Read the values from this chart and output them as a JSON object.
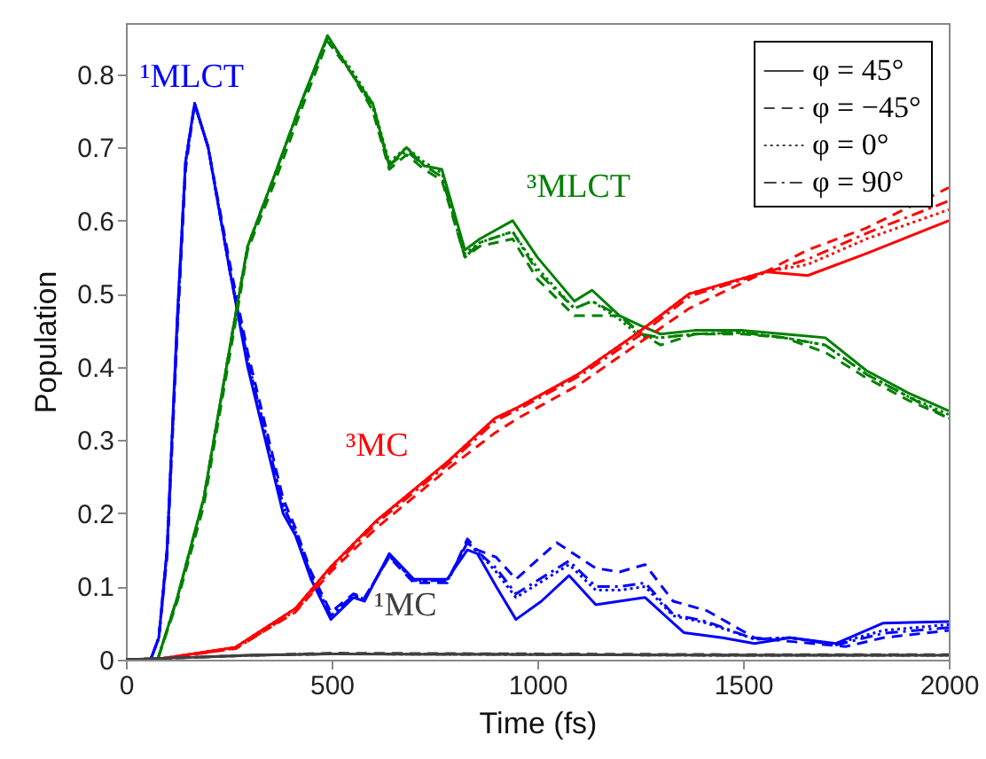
{
  "chart_data": {
    "type": "line",
    "xlabel": "Time (fs)",
    "ylabel": "Population",
    "xlim": [
      0,
      2000
    ],
    "xticks": [
      0,
      500,
      1000,
      1500,
      2000
    ],
    "ylim": [
      0,
      0.87
    ],
    "yticks": [
      0,
      0.1,
      0.2,
      0.3,
      0.4,
      0.5,
      0.6,
      0.7,
      0.8
    ],
    "grid": false,
    "legend": "top right",
    "marker": "none",
    "annotations": [
      "¹MLCT",
      "³MLCT",
      "³MC",
      "¹MC"
    ],
    "series": [
      {
        "color": "#0000ff",
        "line_style": "solid",
        "x": [
          0,
          60,
          80,
          100,
          125,
          145,
          167,
          200,
          253,
          296,
          382,
          412,
          450,
          498,
          553,
          580,
          640,
          700,
          781,
          830,
          854,
          900,
          948,
          1010,
          1077,
          1142,
          1200,
          1262,
          1356,
          1450,
          1528,
          1614,
          1725,
          1841,
          2000
        ],
        "values": [
          0,
          0,
          0.03,
          0.15,
          0.47,
          0.68,
          0.76,
          0.7,
          0.53,
          0.4,
          0.2,
          0.17,
          0.11,
          0.055,
          0.085,
          0.08,
          0.145,
          0.11,
          0.11,
          0.15,
          0.145,
          0.1,
          0.055,
          0.08,
          0.115,
          0.075,
          0.08,
          0.085,
          0.037,
          0.03,
          0.022,
          0.03,
          0.022,
          0.05,
          0.052
        ]
      },
      {
        "color": "#0000ff",
        "line_style": "dashed",
        "x": [
          0,
          60,
          80,
          100,
          125,
          145,
          167,
          200,
          253,
          296,
          382,
          412,
          450,
          498,
          553,
          580,
          640,
          700,
          781,
          830,
          854,
          900,
          948,
          1047,
          1142,
          1200,
          1262,
          1330,
          1412,
          1528,
          1614,
          1750,
          1841,
          2000
        ],
        "values": [
          0,
          0,
          0.03,
          0.14,
          0.45,
          0.67,
          0.76,
          0.7,
          0.54,
          0.42,
          0.22,
          0.18,
          0.12,
          0.065,
          0.09,
          0.085,
          0.14,
          0.105,
          0.105,
          0.165,
          0.15,
          0.14,
          0.11,
          0.16,
          0.125,
          0.12,
          0.13,
          0.08,
          0.067,
          0.03,
          0.025,
          0.018,
          0.03,
          0.04
        ]
      },
      {
        "color": "#0000ff",
        "line_style": "dotted",
        "x": [
          0,
          60,
          80,
          100,
          125,
          145,
          167,
          200,
          253,
          296,
          382,
          412,
          450,
          498,
          553,
          580,
          640,
          700,
          781,
          830,
          854,
          900,
          948,
          1077,
          1142,
          1200,
          1262,
          1330,
          1412,
          1528,
          1614,
          1725,
          1841,
          2000
        ],
        "values": [
          0,
          0,
          0.03,
          0.15,
          0.46,
          0.68,
          0.76,
          0.7,
          0.53,
          0.41,
          0.21,
          0.175,
          0.115,
          0.06,
          0.088,
          0.083,
          0.142,
          0.108,
          0.108,
          0.16,
          0.148,
          0.12,
          0.085,
          0.13,
          0.095,
          0.095,
          0.1,
          0.06,
          0.05,
          0.028,
          0.03,
          0.022,
          0.04,
          0.048
        ]
      },
      {
        "color": "#0000ff",
        "line_style": "dashdot",
        "x": [
          0,
          60,
          80,
          100,
          125,
          145,
          167,
          200,
          253,
          296,
          382,
          412,
          450,
          498,
          553,
          580,
          640,
          700,
          781,
          830,
          854,
          900,
          948,
          1077,
          1142,
          1200,
          1262,
          1330,
          1412,
          1528,
          1614,
          1725,
          1841,
          2000
        ],
        "values": [
          0,
          0,
          0.03,
          0.15,
          0.46,
          0.68,
          0.76,
          0.7,
          0.53,
          0.41,
          0.21,
          0.175,
          0.115,
          0.06,
          0.088,
          0.083,
          0.142,
          0.108,
          0.108,
          0.16,
          0.148,
          0.125,
          0.09,
          0.135,
          0.1,
          0.1,
          0.105,
          0.062,
          0.052,
          0.028,
          0.03,
          0.02,
          0.036,
          0.044
        ]
      },
      {
        "color": "#008000",
        "line_style": "solid",
        "x": [
          0,
          77,
          125,
          189,
          266,
          296,
          360,
          425,
          490,
          550,
          600,
          640,
          682,
          725,
          768,
          824,
          860,
          940,
          1000,
          1090,
          1133,
          1200,
          1253,
          1300,
          1382,
          1500,
          1600,
          1700,
          1800,
          1900,
          2000
        ],
        "values": [
          0,
          0,
          0.085,
          0.22,
          0.47,
          0.565,
          0.66,
          0.76,
          0.853,
          0.8,
          0.76,
          0.675,
          0.7,
          0.675,
          0.67,
          0.56,
          0.575,
          0.6,
          0.55,
          0.49,
          0.505,
          0.47,
          0.456,
          0.445,
          0.45,
          0.45,
          0.445,
          0.44,
          0.395,
          0.365,
          0.34
        ]
      },
      {
        "color": "#008000",
        "line_style": "dashed",
        "x": [
          0,
          77,
          125,
          189,
          266,
          296,
          360,
          425,
          490,
          550,
          600,
          640,
          682,
          725,
          768,
          824,
          860,
          940,
          1000,
          1090,
          1133,
          1200,
          1253,
          1300,
          1382,
          1500,
          1600,
          1700,
          1800,
          1900,
          2000
        ],
        "values": [
          0,
          0,
          0.08,
          0.21,
          0.46,
          0.56,
          0.65,
          0.75,
          0.845,
          0.8,
          0.75,
          0.67,
          0.69,
          0.67,
          0.655,
          0.55,
          0.565,
          0.575,
          0.52,
          0.47,
          0.47,
          0.47,
          0.445,
          0.43,
          0.445,
          0.445,
          0.44,
          0.42,
          0.385,
          0.355,
          0.33
        ]
      },
      {
        "color": "#008000",
        "line_style": "dotted",
        "x": [
          0,
          77,
          125,
          189,
          266,
          296,
          360,
          425,
          490,
          550,
          600,
          640,
          682,
          725,
          768,
          824,
          860,
          940,
          1000,
          1090,
          1133,
          1200,
          1253,
          1300,
          1382,
          1500,
          1600,
          1700,
          1800,
          1900,
          2000
        ],
        "values": [
          0,
          0,
          0.085,
          0.22,
          0.47,
          0.565,
          0.66,
          0.76,
          0.85,
          0.805,
          0.76,
          0.68,
          0.7,
          0.68,
          0.665,
          0.555,
          0.57,
          0.585,
          0.535,
          0.48,
          0.49,
          0.465,
          0.44,
          0.44,
          0.445,
          0.447,
          0.44,
          0.43,
          0.39,
          0.36,
          0.335
        ]
      },
      {
        "color": "#008000",
        "line_style": "dashdot",
        "x": [
          0,
          77,
          125,
          189,
          266,
          296,
          360,
          425,
          490,
          550,
          600,
          640,
          682,
          725,
          768,
          824,
          860,
          940,
          1000,
          1090,
          1133,
          1200,
          1253,
          1300,
          1382,
          1500,
          1600,
          1700,
          1800,
          1900,
          2000
        ],
        "values": [
          0,
          0,
          0.085,
          0.22,
          0.47,
          0.565,
          0.66,
          0.76,
          0.85,
          0.8,
          0.755,
          0.675,
          0.695,
          0.675,
          0.66,
          0.55,
          0.57,
          0.585,
          0.53,
          0.48,
          0.49,
          0.47,
          0.445,
          0.44,
          0.445,
          0.447,
          0.44,
          0.43,
          0.39,
          0.36,
          0.33
        ]
      },
      {
        "color": "#ff0000",
        "line_style": "solid",
        "x": [
          0,
          69,
          266,
          412,
          498,
          609,
          781,
          897,
          953,
          1099,
          1240,
          1369,
          1554,
          1657,
          1800,
          2000
        ],
        "values": [
          0,
          0,
          0.017,
          0.07,
          0.127,
          0.19,
          0.27,
          0.33,
          0.345,
          0.39,
          0.445,
          0.5,
          0.53,
          0.525,
          0.555,
          0.6
        ]
      },
      {
        "color": "#ff0000",
        "line_style": "dashed",
        "x": [
          0,
          69,
          266,
          412,
          498,
          609,
          781,
          897,
          953,
          1099,
          1240,
          1369,
          1554,
          1657,
          1800,
          2000
        ],
        "values": [
          0,
          0,
          0.015,
          0.065,
          0.12,
          0.18,
          0.26,
          0.31,
          0.33,
          0.375,
          0.43,
          0.48,
          0.53,
          0.56,
          0.59,
          0.645
        ]
      },
      {
        "color": "#ff0000",
        "line_style": "dotted",
        "x": [
          0,
          69,
          266,
          412,
          498,
          609,
          781,
          897,
          953,
          1099,
          1240,
          1369,
          1554,
          1657,
          1800,
          2000
        ],
        "values": [
          0,
          0,
          0.017,
          0.07,
          0.127,
          0.19,
          0.27,
          0.33,
          0.345,
          0.39,
          0.445,
          0.5,
          0.53,
          0.54,
          0.575,
          0.615
        ]
      },
      {
        "color": "#ff0000",
        "line_style": "dashdot",
        "x": [
          0,
          75,
          270,
          415,
          500,
          612,
          785,
          900,
          957,
          1103,
          1245,
          1372,
          1550,
          1660,
          1805,
          2000
        ],
        "values": [
          0,
          0,
          0.016,
          0.068,
          0.125,
          0.188,
          0.268,
          0.327,
          0.343,
          0.388,
          0.442,
          0.497,
          0.528,
          0.548,
          0.584,
          0.627
        ]
      },
      {
        "name": "φ = 45°",
        "color": "#404040",
        "line_style": "solid",
        "x": [
          0,
          100,
          300,
          500,
          1000,
          1500,
          2000
        ],
        "values": [
          0,
          0.002,
          0.006,
          0.008,
          0.007,
          0.006,
          0.006
        ]
      },
      {
        "name": "φ = −45°",
        "color": "#404040",
        "line_style": "dashed",
        "x": [
          0,
          100,
          300,
          500,
          1000,
          1500,
          2000
        ],
        "values": [
          0,
          0.002,
          0.006,
          0.009,
          0.008,
          0.007,
          0.007
        ]
      },
      {
        "name": "φ = 0°",
        "color": "#404040",
        "line_style": "dotted",
        "x": [
          0,
          100,
          300,
          500,
          1000,
          1500,
          2000
        ],
        "values": [
          0,
          0.002,
          0.006,
          0.008,
          0.007,
          0.006,
          0.006
        ]
      },
      {
        "name": "φ = 90°",
        "color": "#404040",
        "line_style": "dashdot",
        "x": [
          0,
          100,
          300,
          500,
          1000,
          1500,
          2000
        ],
        "values": [
          0,
          0.002,
          0.006,
          0.008,
          0.007,
          0.006,
          0.006
        ]
      }
    ]
  }
}
